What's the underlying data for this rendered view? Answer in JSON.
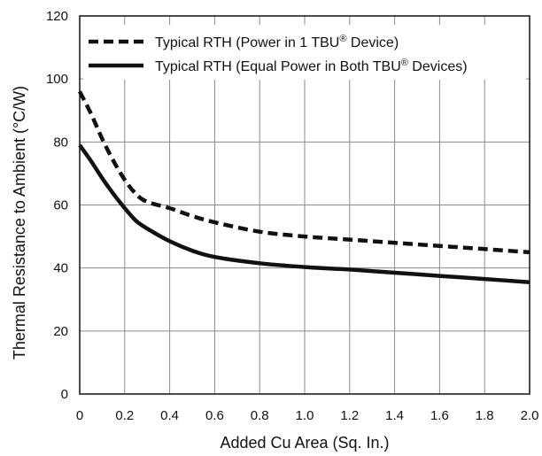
{
  "chart_data": {
    "type": "line",
    "title": "",
    "xlabel": "Added Cu Area (Sq. In.)",
    "ylabel": "Thermal Resistance to Ambient (°C/W)",
    "xlim": [
      0,
      2.0
    ],
    "ylim": [
      0,
      120
    ],
    "x_ticks": [
      "0",
      "0.2",
      "0.4",
      "0.6",
      "0.8",
      "1.0",
      "1.2",
      "1.4",
      "1.6",
      "1.8",
      "2.0"
    ],
    "y_ticks": [
      "0",
      "20",
      "40",
      "60",
      "80",
      "100",
      "120"
    ],
    "grid": true,
    "legend_position": "top",
    "series": [
      {
        "name": "Typical RTH (Power in 1 TBU® Device)",
        "legend_main": "Typical RTH (Power in 1 TBU",
        "legend_sup": "®",
        "legend_tail": " Device)",
        "style": "dashed",
        "color": "#111111",
        "points": [
          [
            0,
            96
          ],
          [
            0.05,
            89
          ],
          [
            0.1,
            81
          ],
          [
            0.15,
            74
          ],
          [
            0.2,
            68
          ],
          [
            0.25,
            63.5
          ],
          [
            0.3,
            61
          ],
          [
            0.4,
            59
          ],
          [
            0.5,
            56.5
          ],
          [
            0.6,
            54.5
          ],
          [
            0.8,
            51.5
          ],
          [
            1.0,
            50
          ],
          [
            1.2,
            49
          ],
          [
            1.4,
            48
          ],
          [
            1.6,
            47
          ],
          [
            1.8,
            46
          ],
          [
            2.0,
            45
          ]
        ]
      },
      {
        "name": "Typical RTH (Equal Power in Both TBU® Devices)",
        "legend_main": "Typical RTH (Equal Power in Both TBU",
        "legend_sup": "®",
        "legend_tail": " Devices)",
        "style": "solid",
        "color": "#111111",
        "points": [
          [
            0,
            79
          ],
          [
            0.05,
            74
          ],
          [
            0.1,
            68.5
          ],
          [
            0.15,
            63.5
          ],
          [
            0.2,
            59
          ],
          [
            0.25,
            55
          ],
          [
            0.3,
            52.5
          ],
          [
            0.4,
            48.5
          ],
          [
            0.5,
            45.5
          ],
          [
            0.6,
            43.5
          ],
          [
            0.8,
            41.5
          ],
          [
            1.0,
            40.3
          ],
          [
            1.2,
            39.5
          ],
          [
            1.4,
            38.5
          ],
          [
            1.6,
            37.5
          ],
          [
            1.8,
            36.5
          ],
          [
            2.0,
            35.5
          ]
        ]
      }
    ]
  }
}
